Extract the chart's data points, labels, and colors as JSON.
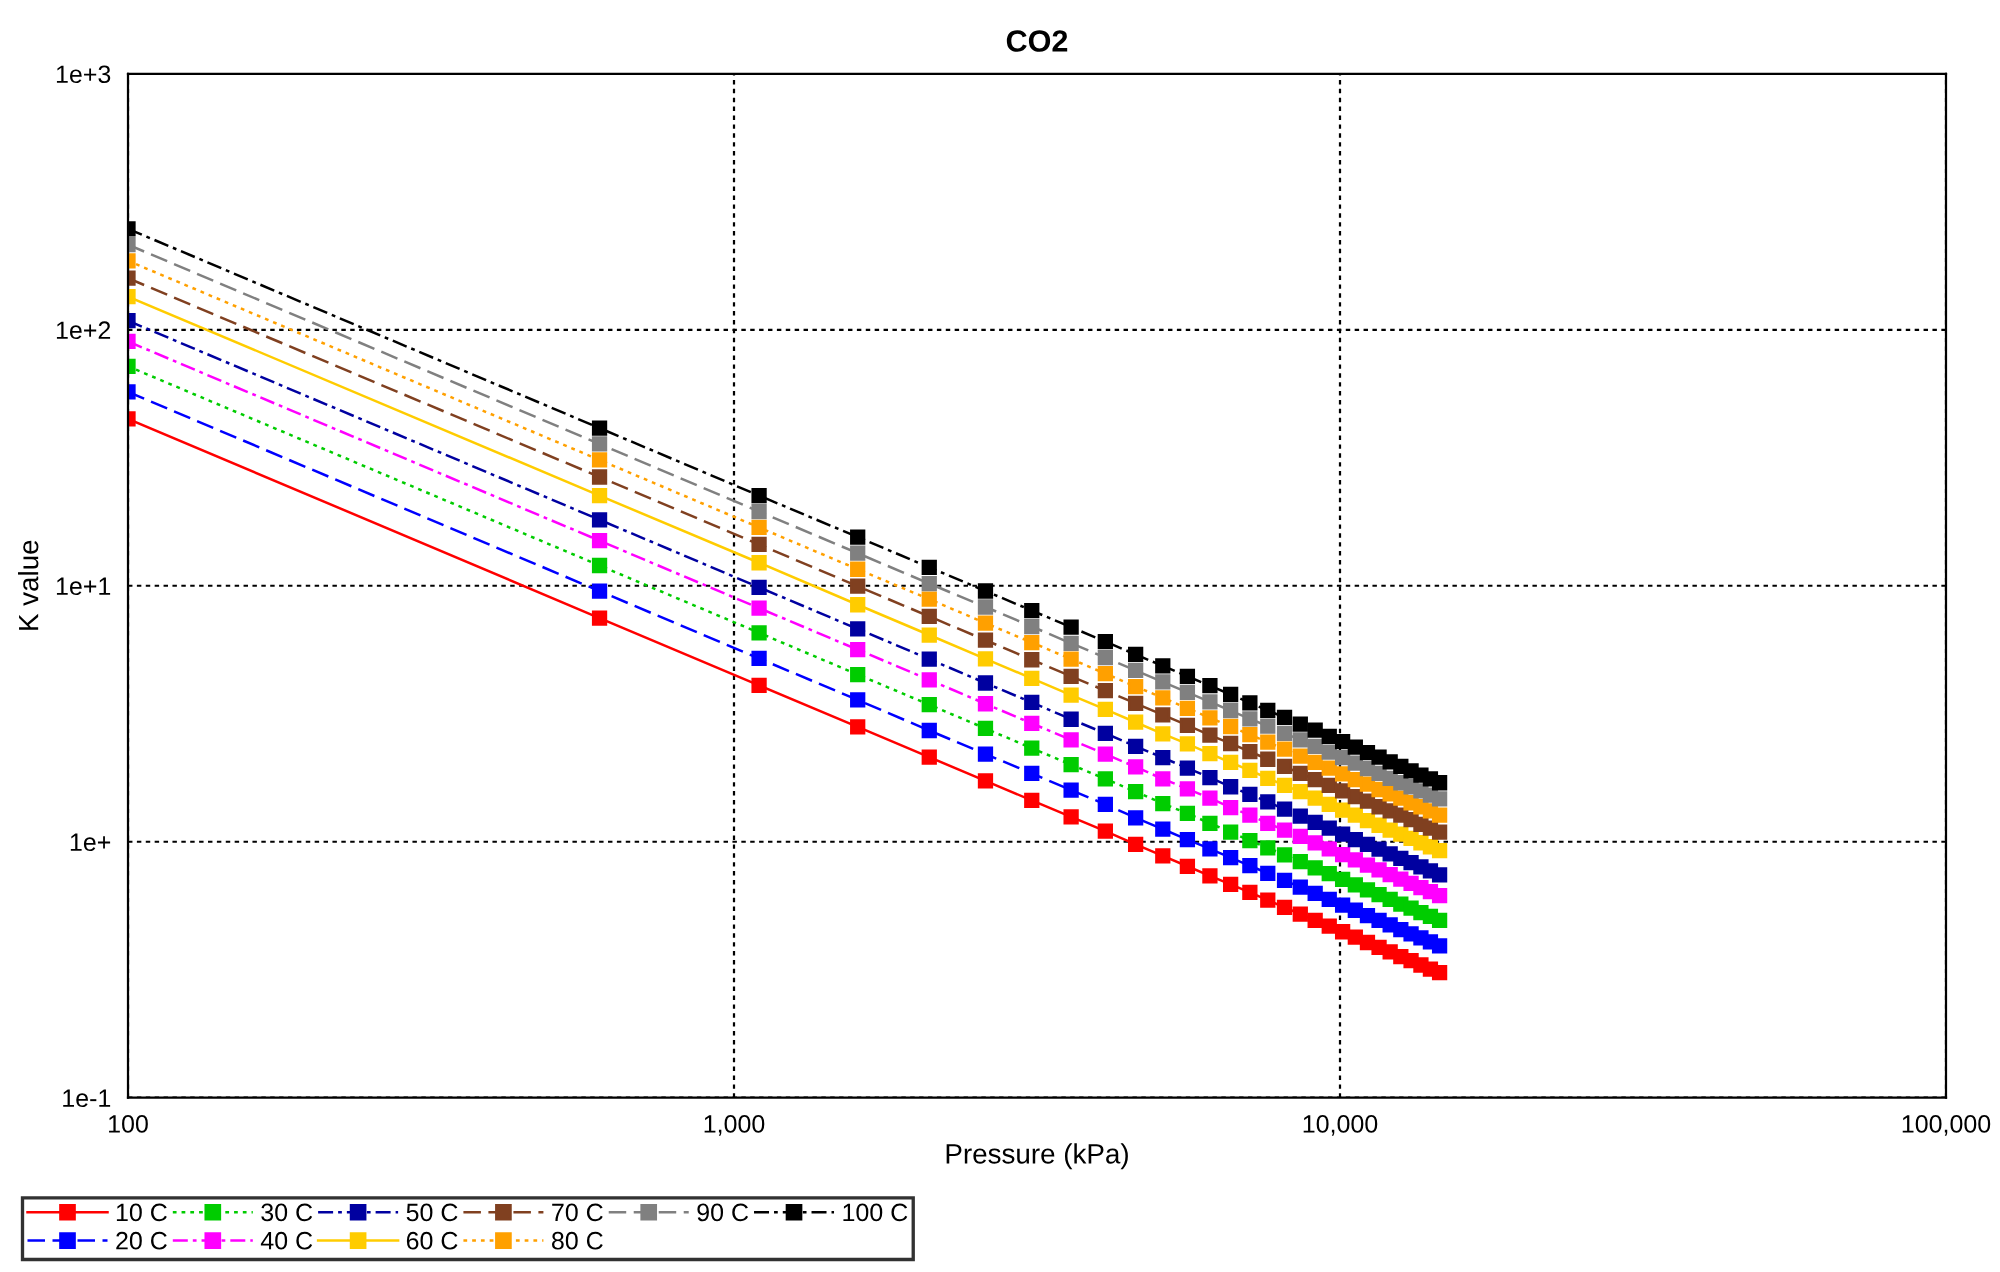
{
  "chart_data": {
    "type": "line",
    "title": "CO2",
    "xlabel": "Pressure (kPa)",
    "ylabel": "K value",
    "log": "xy",
    "grid": true,
    "legend": "bottom left",
    "marker": "square",
    "xlim": [
      100,
      100000
    ],
    "ylim": [
      0.1,
      1000
    ],
    "xticks": [
      100,
      {
        "value": 1000,
        "label": "1,000"
      },
      {
        "value": 10000,
        "label": "10,000"
      },
      {
        "value": 100000,
        "label": "100,000"
      }
    ],
    "yticks": [
      {
        "value": 0.1,
        "label": "1e-1"
      },
      {
        "value": 1,
        "label": "1e+"
      },
      {
        "value": 10,
        "label": "1e+1"
      },
      {
        "value": 100,
        "label": "1e+2"
      },
      {
        "value": 1000,
        "label": "1e+3"
      }
    ],
    "x": [
      100,
      600,
      1100,
      1600,
      2100,
      2600,
      3100,
      3600,
      4100,
      4600,
      5100,
      5600,
      6100,
      6600,
      7100,
      7600,
      8100,
      8600,
      9100,
      9600,
      10100,
      10600,
      11100,
      11600,
      12100,
      12600,
      13100,
      13600,
      14100,
      14600
    ],
    "series": [
      {
        "name": "10 C",
        "color": "#ff0000",
        "line_style": "solid",
        "values": [
          44.9,
          7.48,
          4.08,
          2.81,
          2.14,
          1.73,
          1.45,
          1.25,
          1.1,
          0.976,
          0.88,
          0.802,
          0.736,
          0.682,
          0.634,
          0.591,
          0.554,
          0.522,
          0.493,
          0.468,
          0.445,
          0.424,
          0.404,
          0.387,
          0.371,
          0.356,
          0.343,
          0.33,
          0.318,
          0.308
        ]
      },
      {
        "name": "20 C",
        "color": "#0000ff",
        "line_style": "dashed",
        "values": [
          57.2,
          9.53,
          5.2,
          3.58,
          2.72,
          2.2,
          1.85,
          1.59,
          1.4,
          1.24,
          1.12,
          1.02,
          0.938,
          0.867,
          0.806,
          0.753,
          0.706,
          0.665,
          0.629,
          0.596,
          0.566,
          0.54,
          0.515,
          0.493,
          0.473,
          0.454,
          0.437,
          0.421,
          0.406,
          0.392
        ]
      },
      {
        "name": "30 C",
        "color": "#00cc00",
        "line_style": "dotted",
        "values": [
          72,
          12.0,
          6.55,
          4.5,
          3.43,
          2.77,
          2.32,
          2.0,
          1.76,
          1.57,
          1.41,
          1.29,
          1.18,
          1.09,
          1.01,
          0.947,
          0.889,
          0.837,
          0.791,
          0.75,
          0.713,
          0.679,
          0.649,
          0.621,
          0.595,
          0.571,
          0.55,
          0.529,
          0.511,
          0.493
        ]
      },
      {
        "name": "40 C",
        "color": "#ff00ff",
        "line_style": "dashdot",
        "values": [
          90,
          15.0,
          8.18,
          5.63,
          4.29,
          3.46,
          2.9,
          2.5,
          2.2,
          1.96,
          1.76,
          1.61,
          1.48,
          1.36,
          1.27,
          1.18,
          1.11,
          1.05,
          0.989,
          0.938,
          0.891,
          0.849,
          0.811,
          0.776,
          0.744,
          0.714,
          0.687,
          0.662,
          0.638,
          0.616
        ]
      },
      {
        "name": "50 C",
        "color": "#0000a0",
        "line_style": "dashdot",
        "values": [
          108.5,
          18.1,
          9.86,
          6.78,
          5.17,
          4.17,
          3.5,
          3.01,
          2.65,
          2.36,
          2.13,
          1.94,
          1.78,
          1.64,
          1.53,
          1.43,
          1.34,
          1.26,
          1.19,
          1.13,
          1.07,
          1.02,
          0.977,
          0.935,
          0.897,
          0.861,
          0.828,
          0.798,
          0.77,
          0.743
        ]
      },
      {
        "name": "60 C",
        "color": "#ffcc00",
        "line_style": "solid",
        "values": [
          134.8,
          22.5,
          12.3,
          8.43,
          6.42,
          5.18,
          4.35,
          3.74,
          3.29,
          2.93,
          2.64,
          2.41,
          2.21,
          2.04,
          1.9,
          1.77,
          1.66,
          1.57,
          1.48,
          1.4,
          1.33,
          1.27,
          1.21,
          1.16,
          1.11,
          1.07,
          1.03,
          0.991,
          0.956,
          0.923
        ]
      },
      {
        "name": "70 C",
        "color": "#804020",
        "line_style": "dashed",
        "values": [
          159,
          26.6,
          14.5,
          9.96,
          7.59,
          6.13,
          5.14,
          4.43,
          3.89,
          3.47,
          3.13,
          2.85,
          2.61,
          2.42,
          2.25,
          2.1,
          1.97,
          1.85,
          1.75,
          1.66,
          1.58,
          1.5,
          1.44,
          1.37,
          1.32,
          1.27,
          1.22,
          1.17,
          1.13,
          1.09
        ]
      },
      {
        "name": "80 C",
        "color": "#ffa000",
        "line_style": "dotted",
        "values": [
          186,
          31.0,
          16.9,
          11.6,
          8.86,
          7.15,
          6.0,
          5.17,
          4.54,
          4.04,
          3.65,
          3.32,
          3.05,
          2.82,
          2.62,
          2.45,
          2.3,
          2.16,
          2.04,
          1.94,
          1.84,
          1.75,
          1.68,
          1.6,
          1.54,
          1.48,
          1.42,
          1.37,
          1.32,
          1.27
        ]
      },
      {
        "name": "90 C",
        "color": "#808080",
        "line_style": "dashed",
        "values": [
          215,
          35.8,
          19.5,
          13.4,
          10.2,
          8.26,
          6.93,
          5.96,
          5.24,
          4.67,
          4.21,
          3.83,
          3.52,
          3.25,
          3.02,
          2.83,
          2.65,
          2.5,
          2.36,
          2.24,
          2.13,
          2.03,
          1.93,
          1.85,
          1.77,
          1.7,
          1.64,
          1.58,
          1.52,
          1.47
        ]
      },
      {
        "name": "100 C",
        "color": "#000000",
        "line_style": "dashdot",
        "values": [
          248,
          41.3,
          22.5,
          15.5,
          11.8,
          9.54,
          8.0,
          6.89,
          6.05,
          5.39,
          4.86,
          4.43,
          4.07,
          3.76,
          3.49,
          3.26,
          3.06,
          2.88,
          2.73,
          2.58,
          2.46,
          2.34,
          2.23,
          2.14,
          2.05,
          1.97,
          1.89,
          1.82,
          1.76,
          1.7
        ]
      }
    ]
  }
}
